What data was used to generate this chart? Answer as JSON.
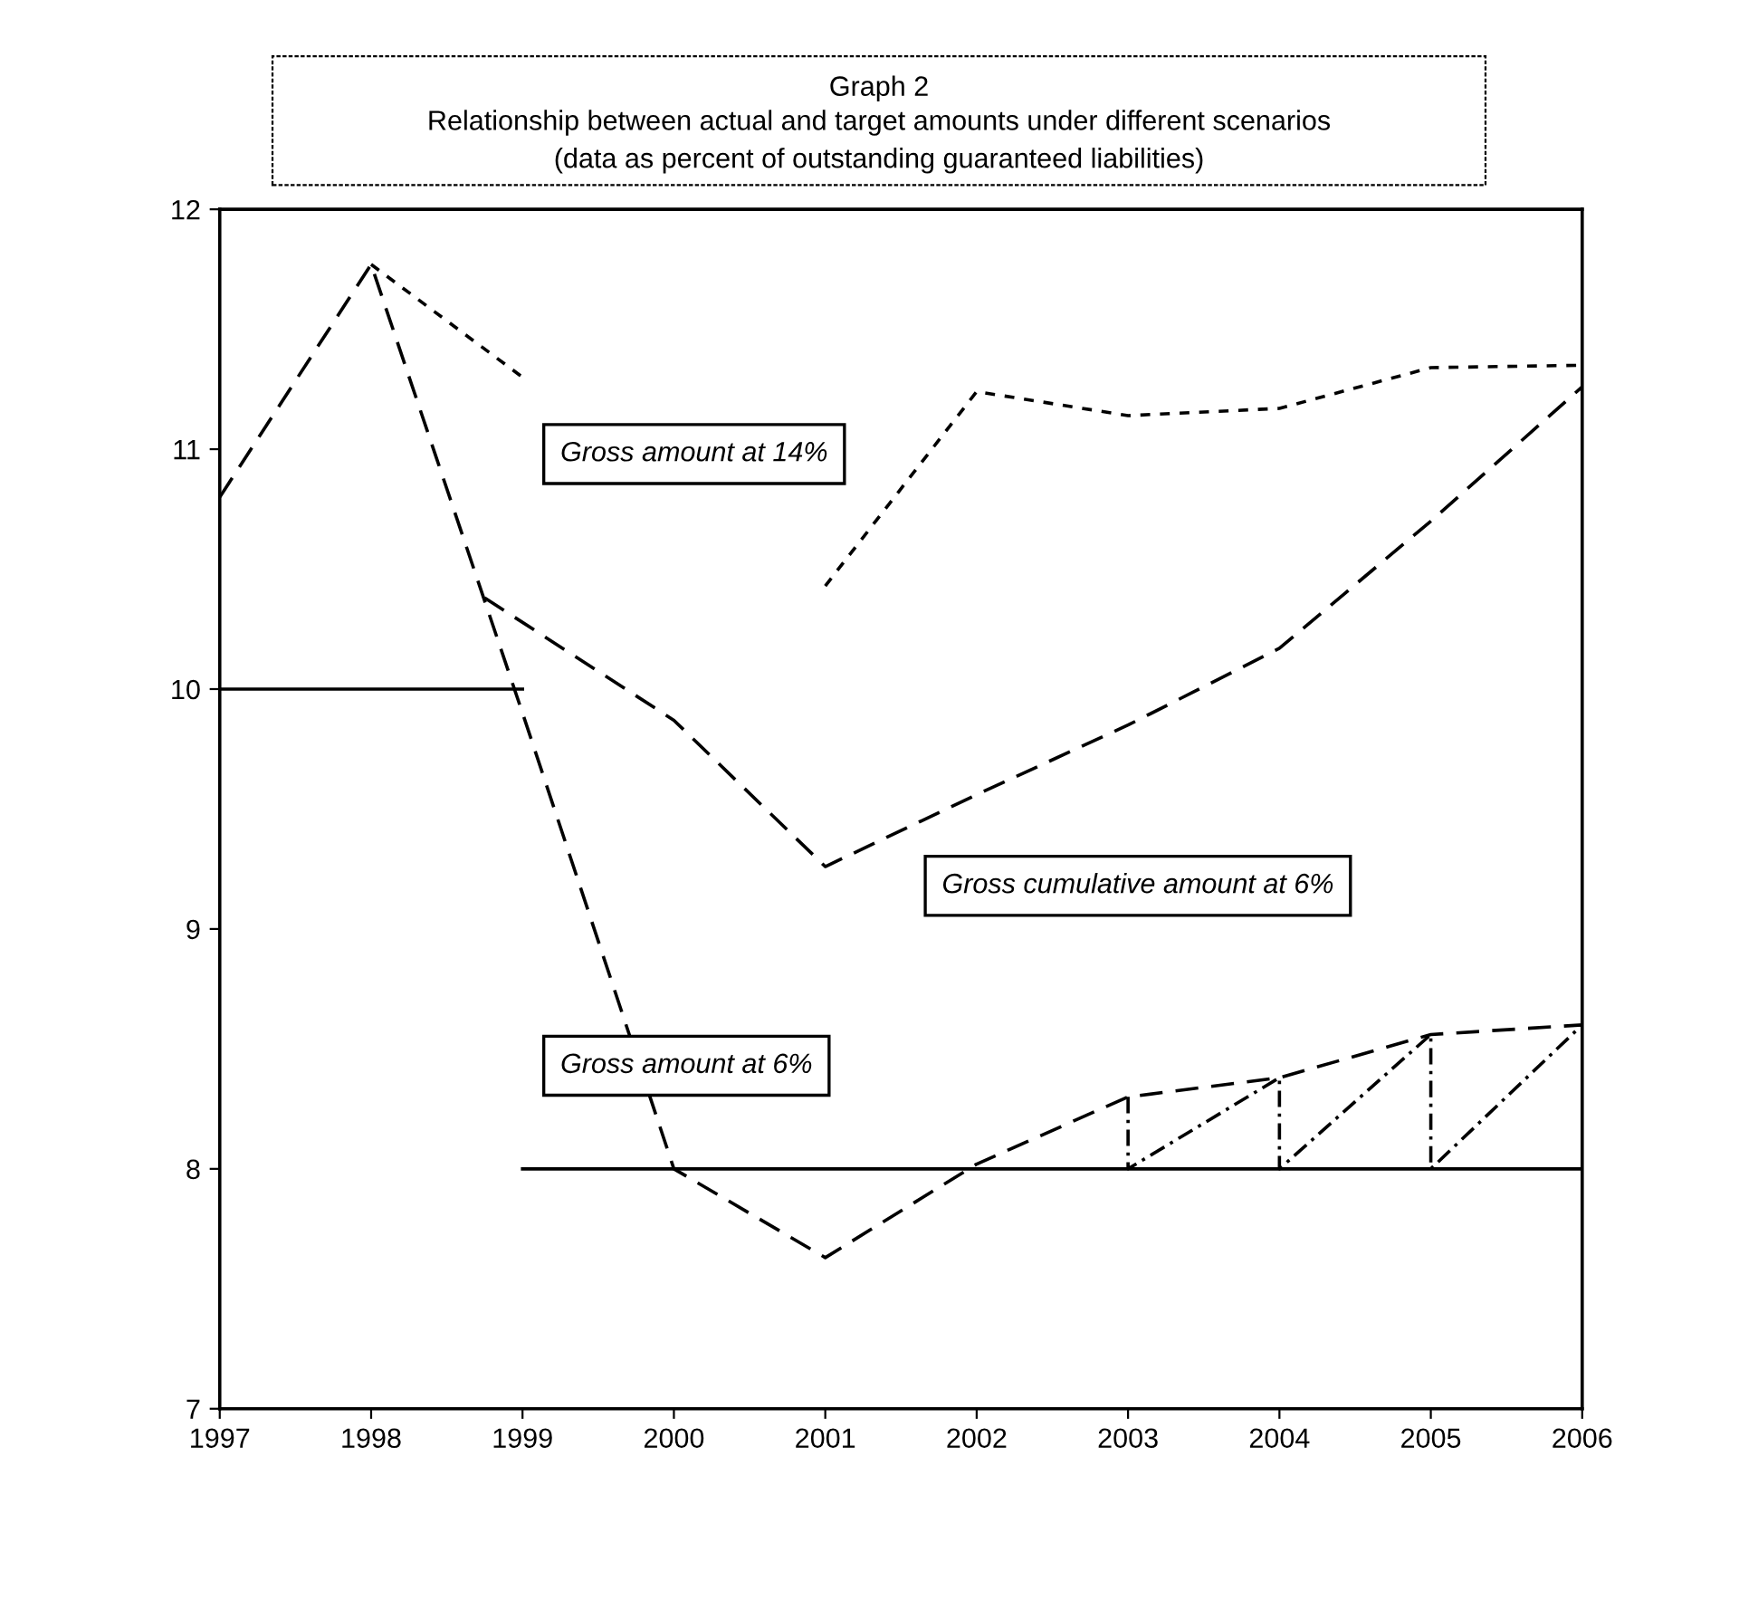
{
  "chart_data": {
    "type": "line",
    "title": "Graph 2",
    "subtitle": "Relationship between actual and target amounts under different scenarios\n(data as percent of outstanding guaranteed liabilities)",
    "xlim": [
      1997,
      2006
    ],
    "xticks": [
      1997,
      1998,
      1999,
      2000,
      2001,
      2002,
      2003,
      2004,
      2005,
      2006
    ],
    "ylim": [
      7,
      12
    ],
    "yticks": [
      7,
      8,
      9,
      10,
      11,
      12
    ],
    "grid": false,
    "legend": false,
    "marker": "none",
    "series": [
      {
        "name": "Gross amount at 14%",
        "color": "#000000",
        "line_style": "dotted",
        "x": [
          1998,
          1999,
          2000,
          2001,
          2002,
          2003,
          2004,
          2005,
          2006
        ],
        "values": [
          11.77,
          11.3,
          null,
          10.43,
          11.24,
          11.14,
          11.17,
          11.34,
          11.35
        ]
      },
      {
        "name": "Gross cumulative amount at 6%",
        "color": "#000000",
        "line_style": "dashed",
        "x": [
          1998.75,
          2000,
          2001,
          2002,
          2003,
          2004,
          2005,
          2006
        ],
        "values": [
          10.38,
          9.87,
          9.26,
          9.56,
          9.85,
          10.17,
          10.7,
          11.26
        ]
      },
      {
        "name": "Gross amount at 6%",
        "color": "#000000",
        "line_style": "dashed",
        "x": [
          1997,
          1998,
          1999,
          2000,
          2001,
          2002,
          2003,
          2004,
          2005,
          2006
        ],
        "values": [
          10.8,
          11.77,
          9.9,
          8.0,
          7.63,
          8.02,
          8.3,
          8.38,
          8.56,
          8.6
        ]
      },
      {
        "color": "#000000",
        "line_style": "dashdot",
        "x": [
          2003,
          2003,
          2004,
          2004,
          2005,
          2005,
          2006,
          2006
        ],
        "values": [
          8.3,
          8.0,
          8.38,
          8.0,
          8.56,
          8.0,
          8.6,
          8.0
        ]
      },
      {
        "color": "#000000",
        "line_style": "solid",
        "x": [
          1997,
          1999
        ],
        "values": [
          10,
          10
        ]
      },
      {
        "color": "#000000",
        "line_style": "solid",
        "x": [
          1999,
          2006
        ],
        "values": [
          8,
          8
        ]
      }
    ]
  }
}
